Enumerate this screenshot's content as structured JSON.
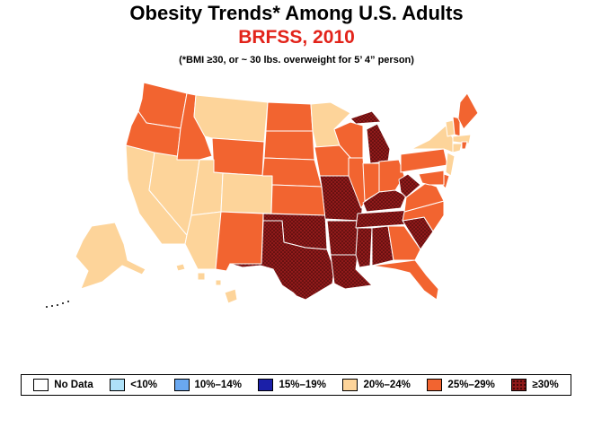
{
  "header": {
    "title": "Obesity Trends* Among U.S. Adults",
    "subtitle": "BRFSS, 2010",
    "note": "(*BMI ≥30, or ~ 30 lbs. overweight for 5’ 4” person)"
  },
  "colors": {
    "no_data": "#ffffff",
    "lt10": "#aee1f8",
    "10_14": "#6aa8f0",
    "15_19": "#1b1fa8",
    "20_24": "#fdd49a",
    "25_29": "#f26430",
    "ge30": "#8f1a1a"
  },
  "legend": [
    {
      "label": "No Data",
      "key": "no_data"
    },
    {
      "label": "<10%",
      "key": "lt10"
    },
    {
      "label": "10%–14%",
      "key": "10_14"
    },
    {
      "label": "15%–19%",
      "key": "15_19"
    },
    {
      "label": "20%–24%",
      "key": "20_24"
    },
    {
      "label": "25%–29%",
      "key": "25_29"
    },
    {
      "label": "≥30%",
      "key": "ge30"
    }
  ],
  "states": {
    "WA": "25_29",
    "OR": "25_29",
    "CA": "20_24",
    "NV": "20_24",
    "ID": "25_29",
    "MT": "20_24",
    "WY": "25_29",
    "UT": "20_24",
    "CO": "20_24",
    "AZ": "20_24",
    "NM": "25_29",
    "ND": "25_29",
    "SD": "25_29",
    "NE": "25_29",
    "KS": "25_29",
    "OK": "ge30",
    "TX": "ge30",
    "MN": "20_24",
    "IA": "25_29",
    "MO": "ge30",
    "AR": "ge30",
    "LA": "ge30",
    "WI": "25_29",
    "IL": "25_29",
    "MI": "ge30",
    "IN": "25_29",
    "OH": "25_29",
    "KY": "ge30",
    "TN": "ge30",
    "MS": "ge30",
    "AL": "ge30",
    "GA": "25_29",
    "FL": "25_29",
    "SC": "ge30",
    "NC": "25_29",
    "VA": "25_29",
    "WV": "ge30",
    "PA": "25_29",
    "NY": "20_24",
    "VT": "20_24",
    "NH": "25_29",
    "ME": "25_29",
    "MA": "20_24",
    "CT": "20_24",
    "RI": "25_29",
    "NJ": "20_24",
    "DE": "25_29",
    "MD": "25_29",
    "AK": "20_24",
    "HI": "20_24"
  }
}
